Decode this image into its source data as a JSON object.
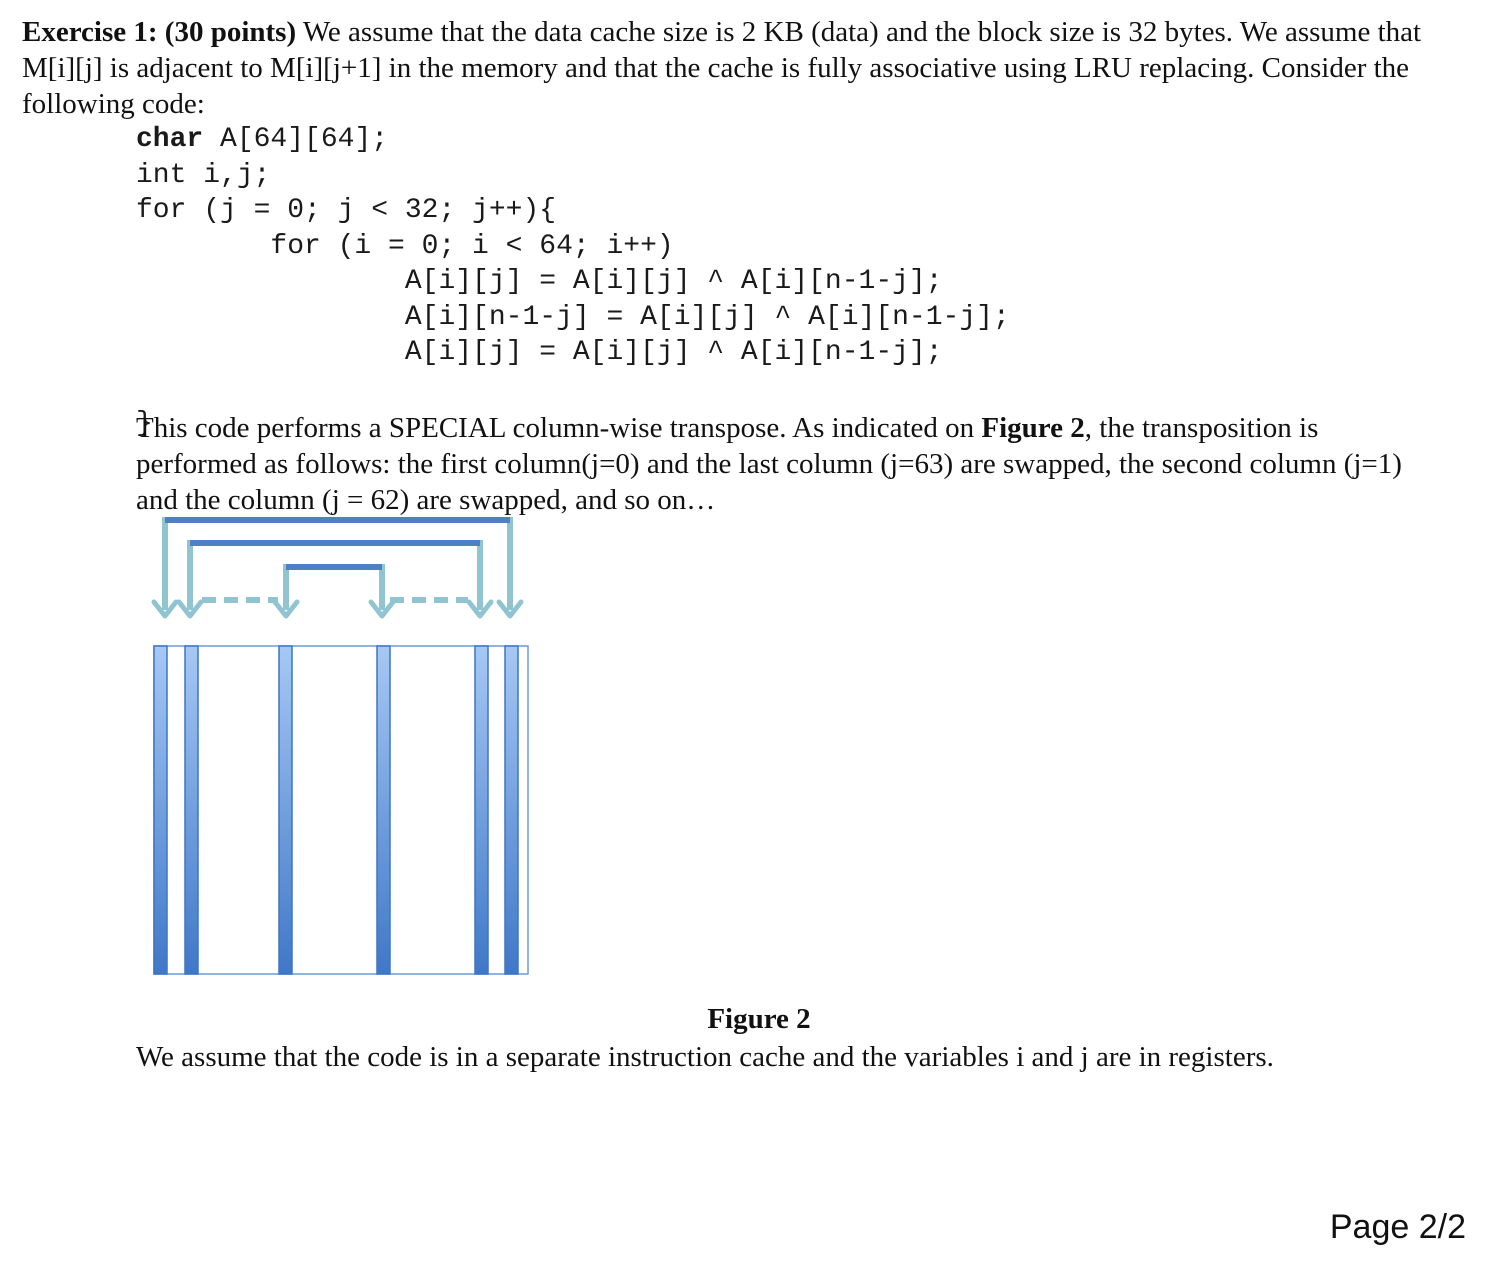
{
  "exercise": {
    "heading": "Exercise 1: (30 points)",
    "text": " We assume that the data cache size is 2 KB (data) and the block size is 32 bytes. We assume that M[i][j] is adjacent to M[i][j+1] in the memory and that the cache is fully associative using LRU replacing. Consider the following code:"
  },
  "code": {
    "keyword": "char",
    "line1_rest": " A[64][64];",
    "line2": "int i,j;",
    "line3": "for (j = 0; j < 32; j++){",
    "line4": "        for (i = 0; i < 64; i++)",
    "line5": "                A[i][j] = A[i][j] ^ A[i][n-1-j];",
    "line6": "                A[i][n-1-j] = A[i][j] ^ A[i][n-1-j];",
    "line7": "                A[i][j] = A[i][j] ^ A[i][n-1-j];",
    "line8": "",
    "line9": "}"
  },
  "description": {
    "part1": "This code performs a SPECIAL column-wise transpose. As indicated on ",
    "bold": "Figure 2",
    "part2": ", the transposition is performed as follows: the first column(j=0) and the last column (j=63) are swapped, the second column (j=1) and the column (j = 62) are swapped, and so on…"
  },
  "figure": {
    "caption": "Figure 2",
    "colors": {
      "column": "#5b8fd6",
      "column_edge": "#3f75c4",
      "arrow": "#8fc4d0",
      "bracket": "#4f80c4",
      "outline": "#6f9ad6"
    }
  },
  "note": "We assume that the code is in a separate instruction cache and the variables i and j are in registers.",
  "footer": {
    "page": "Page 2/2"
  }
}
